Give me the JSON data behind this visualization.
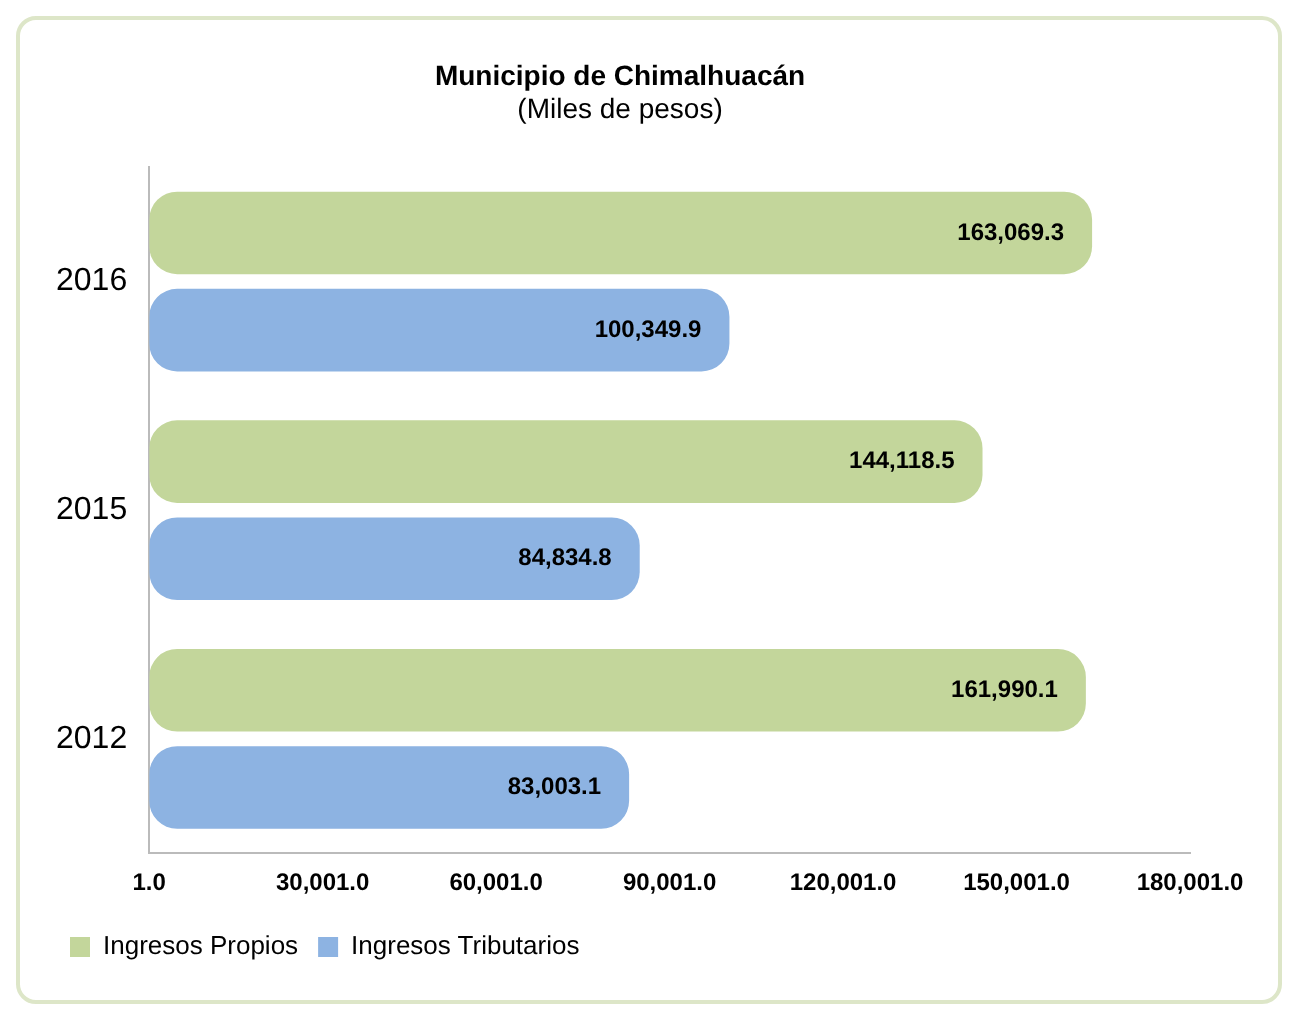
{
  "chart_data": {
    "type": "bar",
    "orientation": "horizontal",
    "title": "Municipio de Chimalhuacán",
    "subtitle": "(Miles de pesos)",
    "categories": [
      "2016",
      "2015",
      "2012"
    ],
    "series": [
      {
        "name": "Ingresos Propios",
        "color": "#c3d69b",
        "values": [
          163069.3,
          144118.5,
          161990.1
        ],
        "value_labels": [
          "163,069.3",
          "144,118.5",
          "161,990.1"
        ]
      },
      {
        "name": "Ingresos Tributarios",
        "color": "#8db3e2",
        "values": [
          100349.9,
          84834.8,
          83003.1
        ],
        "value_labels": [
          "100,349.9",
          "84,834.8",
          "83,003.1"
        ]
      }
    ],
    "xlim": [
      1,
      180001
    ],
    "xticks": [
      {
        "value": 1,
        "label": "1.0"
      },
      {
        "value": 30001,
        "label": "30,001.0"
      },
      {
        "value": 60001,
        "label": "60,001.0"
      },
      {
        "value": 90001,
        "label": "90,001.0"
      },
      {
        "value": 120001,
        "label": "120,001.0"
      },
      {
        "value": 150001,
        "label": "150,001.0"
      },
      {
        "value": 180001,
        "label": "180,001.0"
      }
    ],
    "grid": false,
    "legend": "bottom left"
  }
}
